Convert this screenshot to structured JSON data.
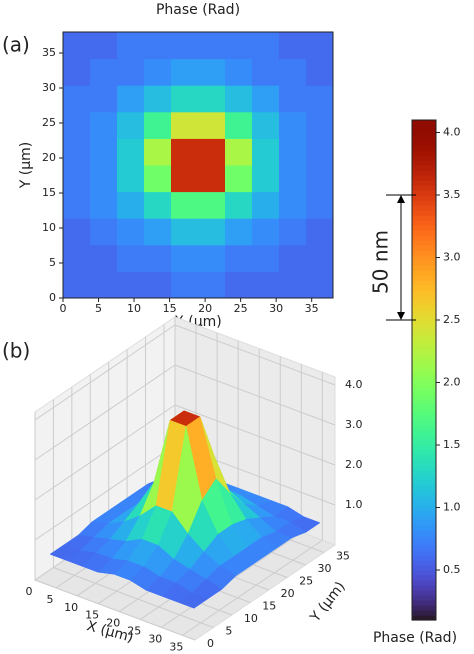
{
  "chart_data": [
    {
      "type": "heatmap",
      "panel": "(a)",
      "title": "Phase (Rad)",
      "xlabel": "X (μm)",
      "ylabel": "Y (μm)",
      "colormap": "turbo",
      "x": [
        1.9,
        5.7,
        9.5,
        13.3,
        17.1,
        20.9,
        24.7,
        28.5,
        32.3,
        36.1
      ],
      "y": [
        1.9,
        5.7,
        9.5,
        13.3,
        17.1,
        20.9,
        24.7,
        28.5,
        32.3,
        36.1
      ],
      "z": [
        [
          0.6,
          0.6,
          0.6,
          0.6,
          0.7,
          0.7,
          0.6,
          0.6,
          0.6,
          0.6
        ],
        [
          0.6,
          0.6,
          0.7,
          0.7,
          0.8,
          0.8,
          0.7,
          0.7,
          0.6,
          0.6
        ],
        [
          0.6,
          0.7,
          0.8,
          0.9,
          1.1,
          1.1,
          0.9,
          0.8,
          0.7,
          0.6
        ],
        [
          0.7,
          0.8,
          1.0,
          1.3,
          1.7,
          1.7,
          1.3,
          1.0,
          0.8,
          0.7
        ],
        [
          0.7,
          0.8,
          1.2,
          1.9,
          3.6,
          3.6,
          1.9,
          1.2,
          0.8,
          0.7
        ],
        [
          0.7,
          0.8,
          1.2,
          2.2,
          3.6,
          3.6,
          2.2,
          1.2,
          0.8,
          0.7
        ],
        [
          0.7,
          0.8,
          1.1,
          1.6,
          2.4,
          2.4,
          1.6,
          1.1,
          0.8,
          0.7
        ],
        [
          0.7,
          0.7,
          0.9,
          1.1,
          1.3,
          1.3,
          1.1,
          0.9,
          0.7,
          0.7
        ],
        [
          0.6,
          0.7,
          0.7,
          0.8,
          0.9,
          0.9,
          0.8,
          0.7,
          0.7,
          0.6
        ],
        [
          0.6,
          0.6,
          0.7,
          0.7,
          0.7,
          0.7,
          0.7,
          0.7,
          0.6,
          0.6
        ]
      ],
      "xlim": [
        0,
        38
      ],
      "ylim": [
        0,
        38
      ],
      "xticks": [
        0,
        5,
        10,
        15,
        20,
        25,
        30,
        35
      ],
      "yticks": [
        0,
        5,
        10,
        15,
        20,
        25,
        30,
        35
      ],
      "colorbar": {
        "label": "Phase (Rad)",
        "lim": [
          0.1,
          4.1
        ],
        "ticks": [
          0.5,
          {
            "value": 1,
            "label": "1.0"
          },
          1.5,
          {
            "value": 2,
            "label": "2.0"
          },
          2.5,
          {
            "value": 3,
            "label": "3.0"
          },
          3.5,
          {
            "value": 4,
            "label": "4.0"
          }
        ]
      },
      "annotation": {
        "text": "50 nm",
        "span": [
          2.5,
          3.5
        ]
      }
    },
    {
      "type": "surface",
      "panel": "(b)",
      "xlabel": "X (μm)",
      "ylabel": "Y (μm)",
      "x": [
        1.9,
        5.7,
        9.5,
        13.3,
        17.1,
        20.9,
        24.7,
        28.5,
        32.3,
        36.1
      ],
      "y": [
        1.9,
        5.7,
        9.5,
        13.3,
        17.1,
        20.9,
        24.7,
        28.5,
        32.3,
        36.1
      ],
      "z": [
        [
          0.6,
          0.6,
          0.6,
          0.6,
          0.7,
          0.7,
          0.6,
          0.6,
          0.6,
          0.6
        ],
        [
          0.6,
          0.6,
          0.7,
          0.7,
          0.8,
          0.8,
          0.7,
          0.7,
          0.6,
          0.6
        ],
        [
          0.6,
          0.7,
          0.8,
          0.9,
          1.1,
          1.1,
          0.9,
          0.8,
          0.7,
          0.6
        ],
        [
          0.7,
          0.8,
          1.0,
          1.3,
          1.7,
          1.7,
          1.3,
          1.0,
          0.8,
          0.7
        ],
        [
          0.7,
          0.8,
          1.2,
          1.9,
          3.6,
          3.6,
          1.9,
          1.2,
          0.8,
          0.7
        ],
        [
          0.7,
          0.8,
          1.2,
          2.2,
          3.6,
          3.6,
          2.2,
          1.2,
          0.8,
          0.7
        ],
        [
          0.7,
          0.8,
          1.1,
          1.6,
          2.4,
          2.4,
          1.6,
          1.1,
          0.8,
          0.7
        ],
        [
          0.7,
          0.7,
          0.9,
          1.1,
          1.3,
          1.3,
          1.1,
          0.9,
          0.7,
          0.7
        ],
        [
          0.6,
          0.7,
          0.7,
          0.8,
          0.9,
          0.9,
          0.8,
          0.7,
          0.7,
          0.6
        ],
        [
          0.6,
          0.6,
          0.7,
          0.7,
          0.7,
          0.7,
          0.7,
          0.7,
          0.6,
          0.6
        ]
      ],
      "xlim": [
        0,
        38
      ],
      "ylim": [
        0,
        38
      ],
      "zlim": [
        0,
        4.2
      ],
      "xticks": [
        0,
        5,
        10,
        15,
        20,
        25,
        30,
        35
      ],
      "yticks": [
        0,
        5,
        10,
        15,
        20,
        25,
        30,
        35
      ],
      "zticks": [
        {
          "value": 1,
          "label": "1.0"
        },
        {
          "value": 2,
          "label": "2.0"
        },
        {
          "value": 3,
          "label": "3.0"
        },
        {
          "value": 4,
          "label": "4.0"
        }
      ]
    }
  ]
}
